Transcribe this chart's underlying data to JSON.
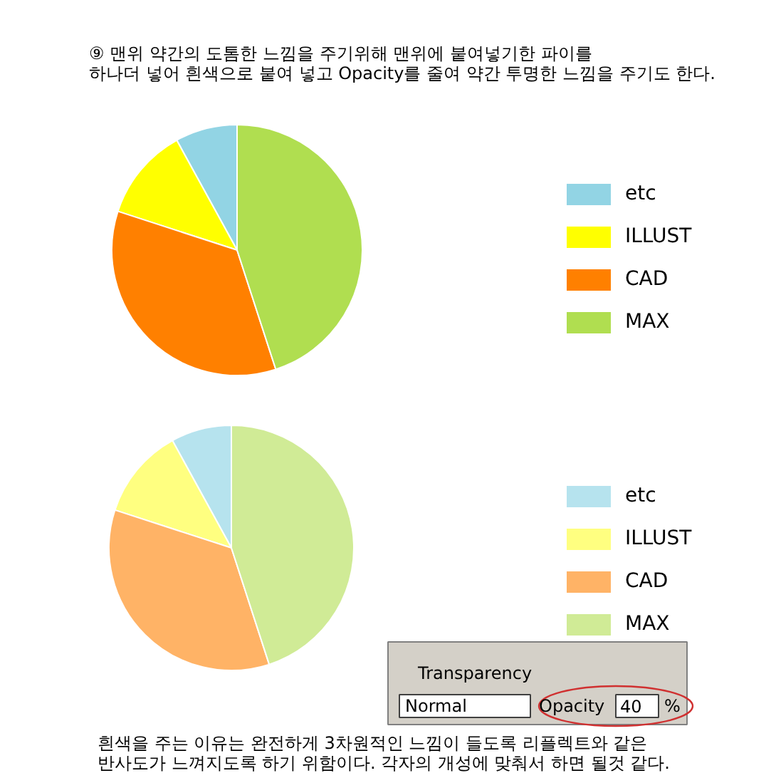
{
  "chart_data": [
    {
      "type": "pie",
      "categories": [
        "etc",
        "ILLUST",
        "CAD",
        "MAX"
      ],
      "values": [
        8,
        12,
        35,
        45
      ],
      "colors": [
        "#92d4e4",
        "#ffff00",
        "#ff8000",
        "#b0de50"
      ],
      "legend": "right",
      "annotations": [
        "⑨ 맨위 약간의 도톰한 느낌을 주기위해 맨위에  붙여넣기한 파이를\n하나더 넣어 흰색으로 붙여 넣고 Opacity를 줄여 약간 투명한 느낌을 주기도 한다."
      ]
    },
    {
      "type": "pie",
      "categories": [
        "etc",
        "ILLUST",
        "CAD",
        "MAX"
      ],
      "values": [
        8,
        12,
        35,
        45
      ],
      "colors": [
        "#b6e3ee",
        "#ffff80",
        "#ffb366",
        "#d0eb96"
      ],
      "legend": "right",
      "annotations": [
        "흰색을 주는 이유는 완전하게 3차원적인 느낌이 들도록 리플렉트와 같은\n반사도가 느껴지도록 하기 위함이다. 각자의 개성에 맞춰서 하면 될것 같다.",
        "Transparency",
        "Normal",
        "Opacity",
        "40",
        "%"
      ]
    }
  ]
}
